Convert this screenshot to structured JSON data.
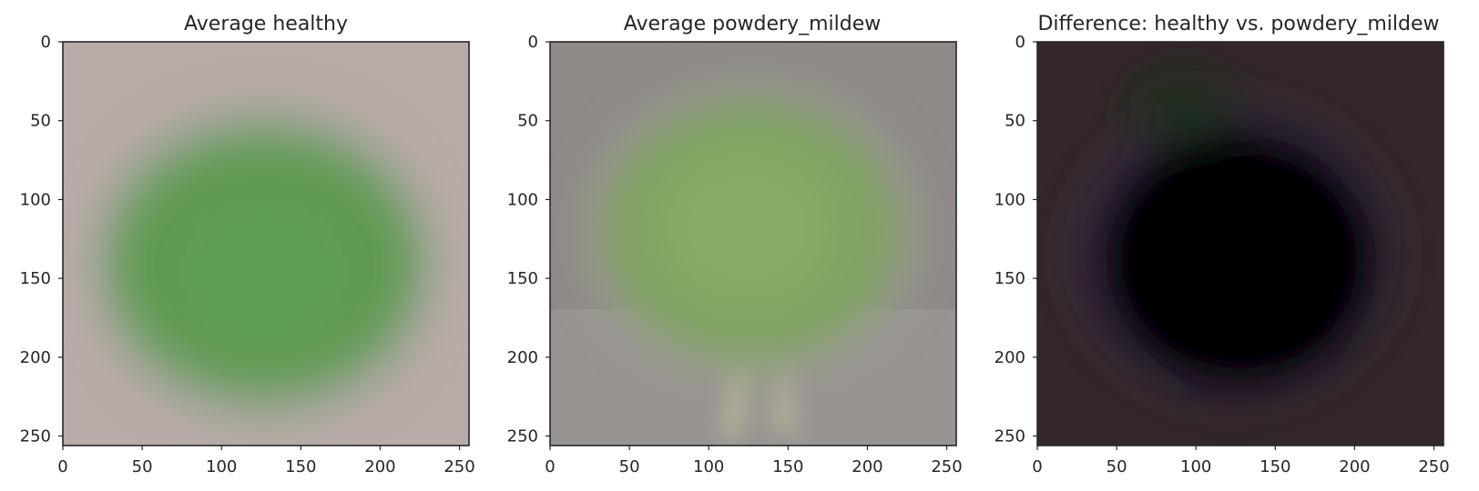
{
  "chart_data": [
    {
      "type": "image",
      "title": "Average healthy",
      "xlim": [
        0,
        256
      ],
      "ylim": [
        256,
        0
      ],
      "xticks": [
        0,
        50,
        100,
        150,
        200,
        250
      ],
      "yticks": [
        0,
        50,
        100,
        150,
        200,
        250
      ],
      "colors": {
        "background": "#b9aba8",
        "leaf": "#5e9a4e",
        "leaf_center": "#62a052",
        "leaf_edge": "#8fa389"
      }
    },
    {
      "type": "image",
      "title": "Average powdery_mildew",
      "xlim": [
        0,
        256
      ],
      "ylim": [
        256,
        0
      ],
      "xticks": [
        0,
        50,
        100,
        150,
        200,
        250
      ],
      "yticks": [
        0,
        50,
        100,
        150,
        200,
        250
      ],
      "colors": {
        "background": "#8f8a88",
        "leaf": "#7ea561",
        "leaf_center": "#86ad66",
        "leaf_edge": "#9a9d8c",
        "stem": "#b7b696"
      }
    },
    {
      "type": "image",
      "title": "Difference: healthy vs. powdery_mildew",
      "xlim": [
        0,
        256
      ],
      "ylim": [
        256,
        0
      ],
      "xticks": [
        0,
        50,
        100,
        150,
        200,
        250
      ],
      "yticks": [
        0,
        50,
        100,
        150,
        200,
        250
      ],
      "colors": {
        "background": "#33272a",
        "leaf": "#050305",
        "leaf_edge": "#3a2c46",
        "tint": "#183018"
      }
    }
  ]
}
